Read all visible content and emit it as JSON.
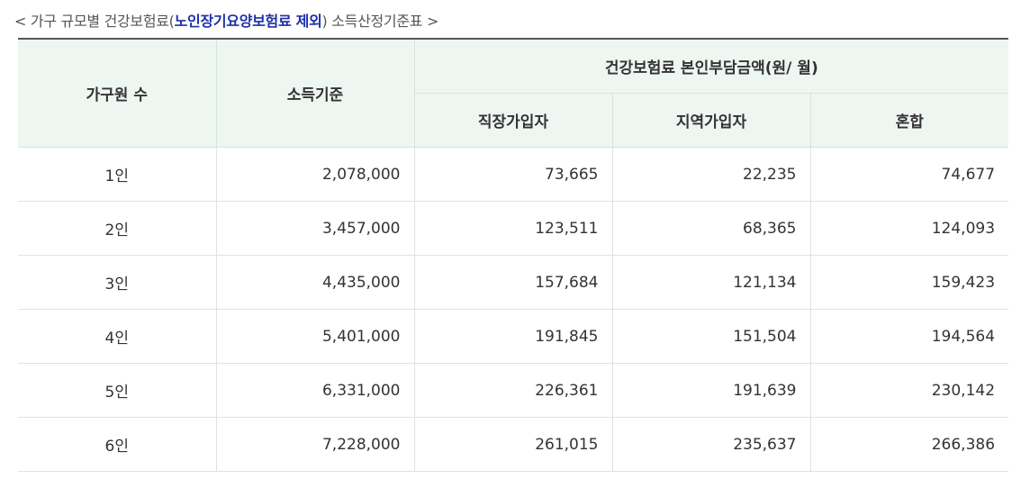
{
  "title": {
    "prefix": "< 가구 규모별 건강보험료(",
    "highlight": "노인장기요양보험료 제외",
    "suffix": ") 소득산정기준표 >"
  },
  "table": {
    "headers": {
      "household": "가구원 수",
      "income": "소득기준",
      "premium_group": "건강보험료 본인부담금액(원/ 월)",
      "workplace": "직장가입자",
      "regional": "지역가입자",
      "mixed": "혼합"
    },
    "rows": [
      {
        "household": "1인",
        "income": "2,078,000",
        "workplace": "73,665",
        "regional": "22,235",
        "mixed": "74,677"
      },
      {
        "household": "2인",
        "income": "3,457,000",
        "workplace": "123,511",
        "regional": "68,365",
        "mixed": "124,093"
      },
      {
        "household": "3인",
        "income": "4,435,000",
        "workplace": "157,684",
        "regional": "121,134",
        "mixed": "159,423"
      },
      {
        "household": "4인",
        "income": "5,401,000",
        "workplace": "191,845",
        "regional": "151,504",
        "mixed": "194,564"
      },
      {
        "household": "5인",
        "income": "6,331,000",
        "workplace": "226,361",
        "regional": "191,639",
        "mixed": "230,142"
      },
      {
        "household": "6인",
        "income": "7,228,000",
        "workplace": "261,015",
        "regional": "235,637",
        "mixed": "266,386"
      }
    ]
  }
}
